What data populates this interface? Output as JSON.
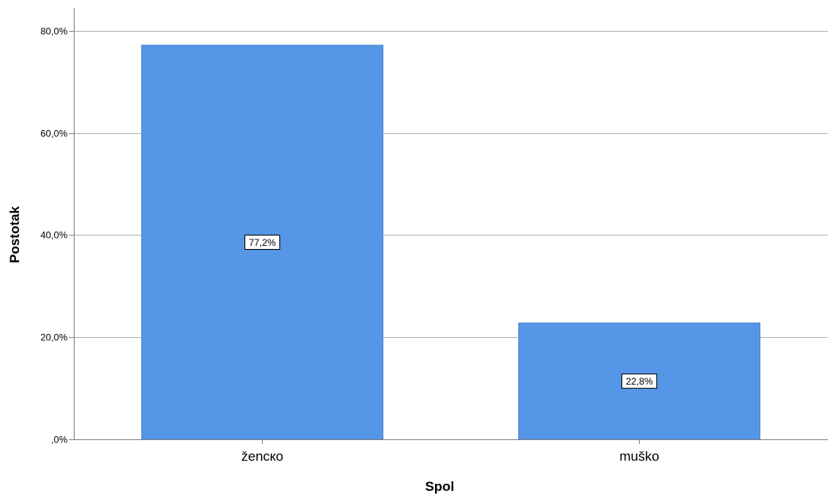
{
  "chart_data": {
    "type": "bar",
    "categories": [
      "ženско",
      "muško"
    ],
    "values": [
      77.2,
      22.8
    ],
    "data_labels": [
      "77,2%",
      "22,8%"
    ],
    "y_ticks": [
      0,
      20,
      40,
      60,
      80
    ],
    "y_tick_labels": [
      ",0%",
      "20,0%",
      "40,0%",
      "60,0%",
      "80,0%"
    ],
    "ylim": [
      0,
      84.5
    ],
    "xlabel": "Spol",
    "ylabel": "Postotak",
    "title": "",
    "grid": true,
    "bar_color": "#5596e6",
    "grid_color": "#b3b3b3",
    "axis_color": "#808080"
  }
}
